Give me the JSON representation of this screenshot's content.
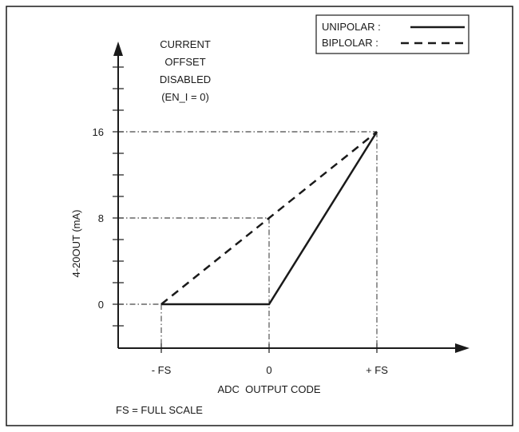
{
  "chart_data": {
    "type": "line",
    "title": "",
    "xlabel": "ADC  OUTPUT CODE",
    "ylabel": "4-20OUT (mA)",
    "x_categories": [
      "- FS",
      "0",
      "+ FS"
    ],
    "y_ticks": [
      "0",
      "8",
      "16"
    ],
    "ylim": [
      -4,
      28
    ],
    "annotation": [
      "CURRENT",
      "OFFSET",
      "DISABLED",
      "(EN_I = 0)"
    ],
    "footnote": "FS = FULL SCALE",
    "legend_position": "top-right",
    "series": [
      {
        "name": "UNIPOLAR :",
        "style": "solid",
        "points": [
          [
            "- FS",
            0
          ],
          [
            "0",
            0
          ],
          [
            "+ FS",
            16
          ]
        ]
      },
      {
        "name": "BIPLOLAR :",
        "style": "dashed",
        "points": [
          [
            "- FS",
            0
          ],
          [
            "0",
            8
          ],
          [
            "+ FS",
            16
          ]
        ]
      }
    ],
    "grid": false,
    "colors": {
      "line": "#1a1a1a",
      "frame": "#1a1a1a"
    }
  }
}
